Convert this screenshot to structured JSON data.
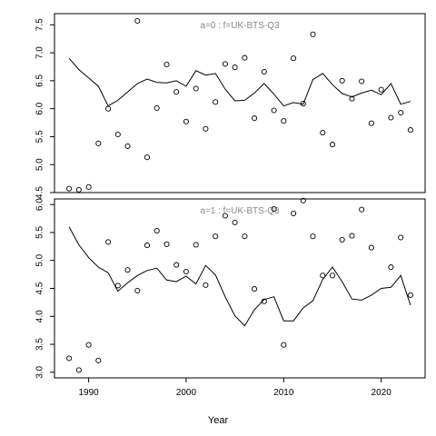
{
  "chart_data": {
    "type": "scatter",
    "xlabel": "Year",
    "x_ticks": [
      1990,
      2000,
      2010,
      2020
    ],
    "xlim": [
      1986.5,
      2024.5
    ],
    "panels": [
      {
        "title": "a=0  :  f=UK-BTS-Q3",
        "ylim": [
          4.5,
          7.7
        ],
        "y_ticks": [
          "4.5",
          "5.0",
          "5.5",
          "6.0",
          "6.5",
          "7.0",
          "7.5"
        ],
        "points": [
          [
            1988,
            4.57
          ],
          [
            1989,
            4.55
          ],
          [
            1990,
            4.6
          ],
          [
            1991,
            5.38
          ],
          [
            1992,
            6.0
          ],
          [
            1993,
            5.54
          ],
          [
            1994,
            5.33
          ],
          [
            1995,
            7.57
          ],
          [
            1996,
            5.13
          ],
          [
            1997,
            6.01
          ],
          [
            1998,
            6.79
          ],
          [
            1999,
            6.3
          ],
          [
            2000,
            5.77
          ],
          [
            2001,
            6.36
          ],
          [
            2002,
            5.64
          ],
          [
            2003,
            6.12
          ],
          [
            2004,
            6.8
          ],
          [
            2005,
            6.74
          ],
          [
            2006,
            6.91
          ],
          [
            2007,
            5.83
          ],
          [
            2008,
            6.66
          ],
          [
            2009,
            5.97
          ],
          [
            2010,
            5.78
          ],
          [
            2011,
            6.9
          ],
          [
            2012,
            6.09
          ],
          [
            2013,
            7.33
          ],
          [
            2014,
            5.57
          ],
          [
            2015,
            5.36
          ],
          [
            2016,
            6.5
          ],
          [
            2017,
            6.18
          ],
          [
            2018,
            6.49
          ],
          [
            2019,
            5.74
          ],
          [
            2020,
            6.34
          ],
          [
            2021,
            5.84
          ],
          [
            2022,
            5.93
          ],
          [
            2023,
            5.62
          ]
        ],
        "line": [
          [
            1988,
            6.9
          ],
          [
            1989,
            6.7
          ],
          [
            1990,
            6.55
          ],
          [
            1991,
            6.4
          ],
          [
            1992,
            6.05
          ],
          [
            1993,
            6.15
          ],
          [
            1994,
            6.3
          ],
          [
            1995,
            6.45
          ],
          [
            1996,
            6.53
          ],
          [
            1997,
            6.47
          ],
          [
            1998,
            6.46
          ],
          [
            1999,
            6.5
          ],
          [
            2000,
            6.4
          ],
          [
            2001,
            6.68
          ],
          [
            2002,
            6.6
          ],
          [
            2003,
            6.63
          ],
          [
            2004,
            6.35
          ],
          [
            2005,
            6.14
          ],
          [
            2006,
            6.15
          ],
          [
            2007,
            6.28
          ],
          [
            2008,
            6.45
          ],
          [
            2009,
            6.26
          ],
          [
            2010,
            6.05
          ],
          [
            2011,
            6.11
          ],
          [
            2012,
            6.08
          ],
          [
            2013,
            6.52
          ],
          [
            2014,
            6.63
          ],
          [
            2015,
            6.43
          ],
          [
            2016,
            6.27
          ],
          [
            2017,
            6.21
          ],
          [
            2018,
            6.28
          ],
          [
            2019,
            6.33
          ],
          [
            2020,
            6.25
          ],
          [
            2021,
            6.45
          ],
          [
            2022,
            6.08
          ],
          [
            2023,
            6.13
          ]
        ]
      },
      {
        "title": "a=1  :  f=UK-BTS-Q3",
        "ylim": [
          2.9,
          6.1
        ],
        "y_ticks": [
          "3.0",
          "3.5",
          "4.0",
          "4.5",
          "5.0",
          "5.5",
          "6.0"
        ],
        "points": [
          [
            1988,
            3.25
          ],
          [
            1989,
            3.04
          ],
          [
            1990,
            3.49
          ],
          [
            1991,
            3.21
          ],
          [
            1992,
            5.33
          ],
          [
            1993,
            4.55
          ],
          [
            1994,
            4.83
          ],
          [
            1995,
            4.46
          ],
          [
            1996,
            5.27
          ],
          [
            1997,
            5.53
          ],
          [
            1998,
            5.29
          ],
          [
            1999,
            4.92
          ],
          [
            2000,
            4.8
          ],
          [
            2001,
            5.28
          ],
          [
            2002,
            4.56
          ],
          [
            2003,
            5.43
          ],
          [
            2004,
            5.8
          ],
          [
            2005,
            5.68
          ],
          [
            2006,
            5.43
          ],
          [
            2007,
            4.49
          ],
          [
            2008,
            4.27
          ],
          [
            2009,
            5.92
          ],
          [
            2010,
            3.49
          ],
          [
            2011,
            5.84
          ],
          [
            2012,
            6.07
          ],
          [
            2013,
            5.43
          ],
          [
            2014,
            4.73
          ],
          [
            2015,
            4.73
          ],
          [
            2016,
            5.37
          ],
          [
            2017,
            5.44
          ],
          [
            2018,
            5.91
          ],
          [
            2019,
            5.23
          ],
          [
            2021,
            4.88
          ],
          [
            2022,
            5.41
          ],
          [
            2023,
            4.38
          ]
        ],
        "line": [
          [
            1988,
            5.6
          ],
          [
            1989,
            5.28
          ],
          [
            1990,
            5.05
          ],
          [
            1991,
            4.88
          ],
          [
            1992,
            4.78
          ],
          [
            1993,
            4.45
          ],
          [
            1994,
            4.6
          ],
          [
            1995,
            4.73
          ],
          [
            1996,
            4.82
          ],
          [
            1997,
            4.86
          ],
          [
            1998,
            4.65
          ],
          [
            1999,
            4.62
          ],
          [
            2000,
            4.72
          ],
          [
            2001,
            4.58
          ],
          [
            2002,
            4.91
          ],
          [
            2003,
            4.74
          ],
          [
            2004,
            4.35
          ],
          [
            2005,
            4.01
          ],
          [
            2006,
            3.83
          ],
          [
            2007,
            4.12
          ],
          [
            2008,
            4.3
          ],
          [
            2009,
            4.35
          ],
          [
            2010,
            3.92
          ],
          [
            2011,
            3.92
          ],
          [
            2012,
            4.15
          ],
          [
            2013,
            4.28
          ],
          [
            2014,
            4.66
          ],
          [
            2015,
            4.88
          ],
          [
            2016,
            4.62
          ],
          [
            2017,
            4.31
          ],
          [
            2018,
            4.29
          ],
          [
            2019,
            4.38
          ],
          [
            2020,
            4.5
          ],
          [
            2021,
            4.52
          ],
          [
            2022,
            4.73
          ],
          [
            2023,
            4.2
          ]
        ]
      }
    ]
  }
}
